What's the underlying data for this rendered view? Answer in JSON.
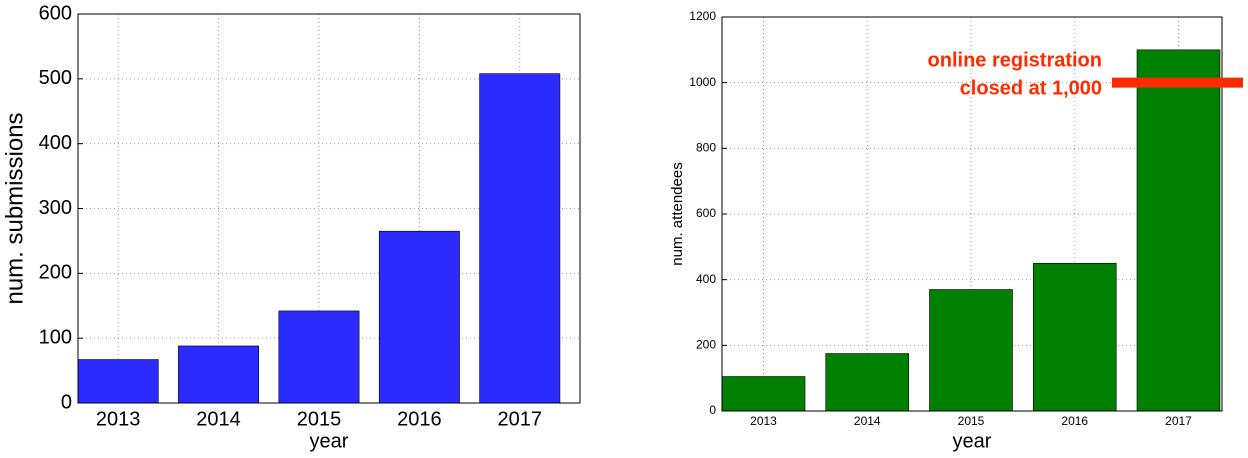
{
  "chart_data": [
    {
      "type": "bar",
      "x_label": "year",
      "y_label": "num. submissions",
      "categories": [
        "2013",
        "2014",
        "2015",
        "2016",
        "2017"
      ],
      "values": [
        67,
        88,
        142,
        265,
        508
      ],
      "color": "#2b2bff",
      "ylim": [
        0,
        600
      ],
      "yticks": [
        0,
        100,
        200,
        300,
        400,
        500,
        600
      ],
      "grid": true
    },
    {
      "type": "bar",
      "x_label": "year",
      "y_label": "num. attendees",
      "categories": [
        "2013",
        "2014",
        "2015",
        "2016",
        "2017"
      ],
      "values": [
        105,
        175,
        370,
        450,
        1100
      ],
      "color": "#008000",
      "ylim": [
        0,
        1200
      ],
      "yticks": [
        0,
        200,
        400,
        600,
        800,
        1000,
        1200
      ],
      "grid": true,
      "annotation": [
        "online registration",
        "closed at 1,000"
      ],
      "reference_line": {
        "value": 1000,
        "color": "#ff2a00"
      }
    }
  ]
}
